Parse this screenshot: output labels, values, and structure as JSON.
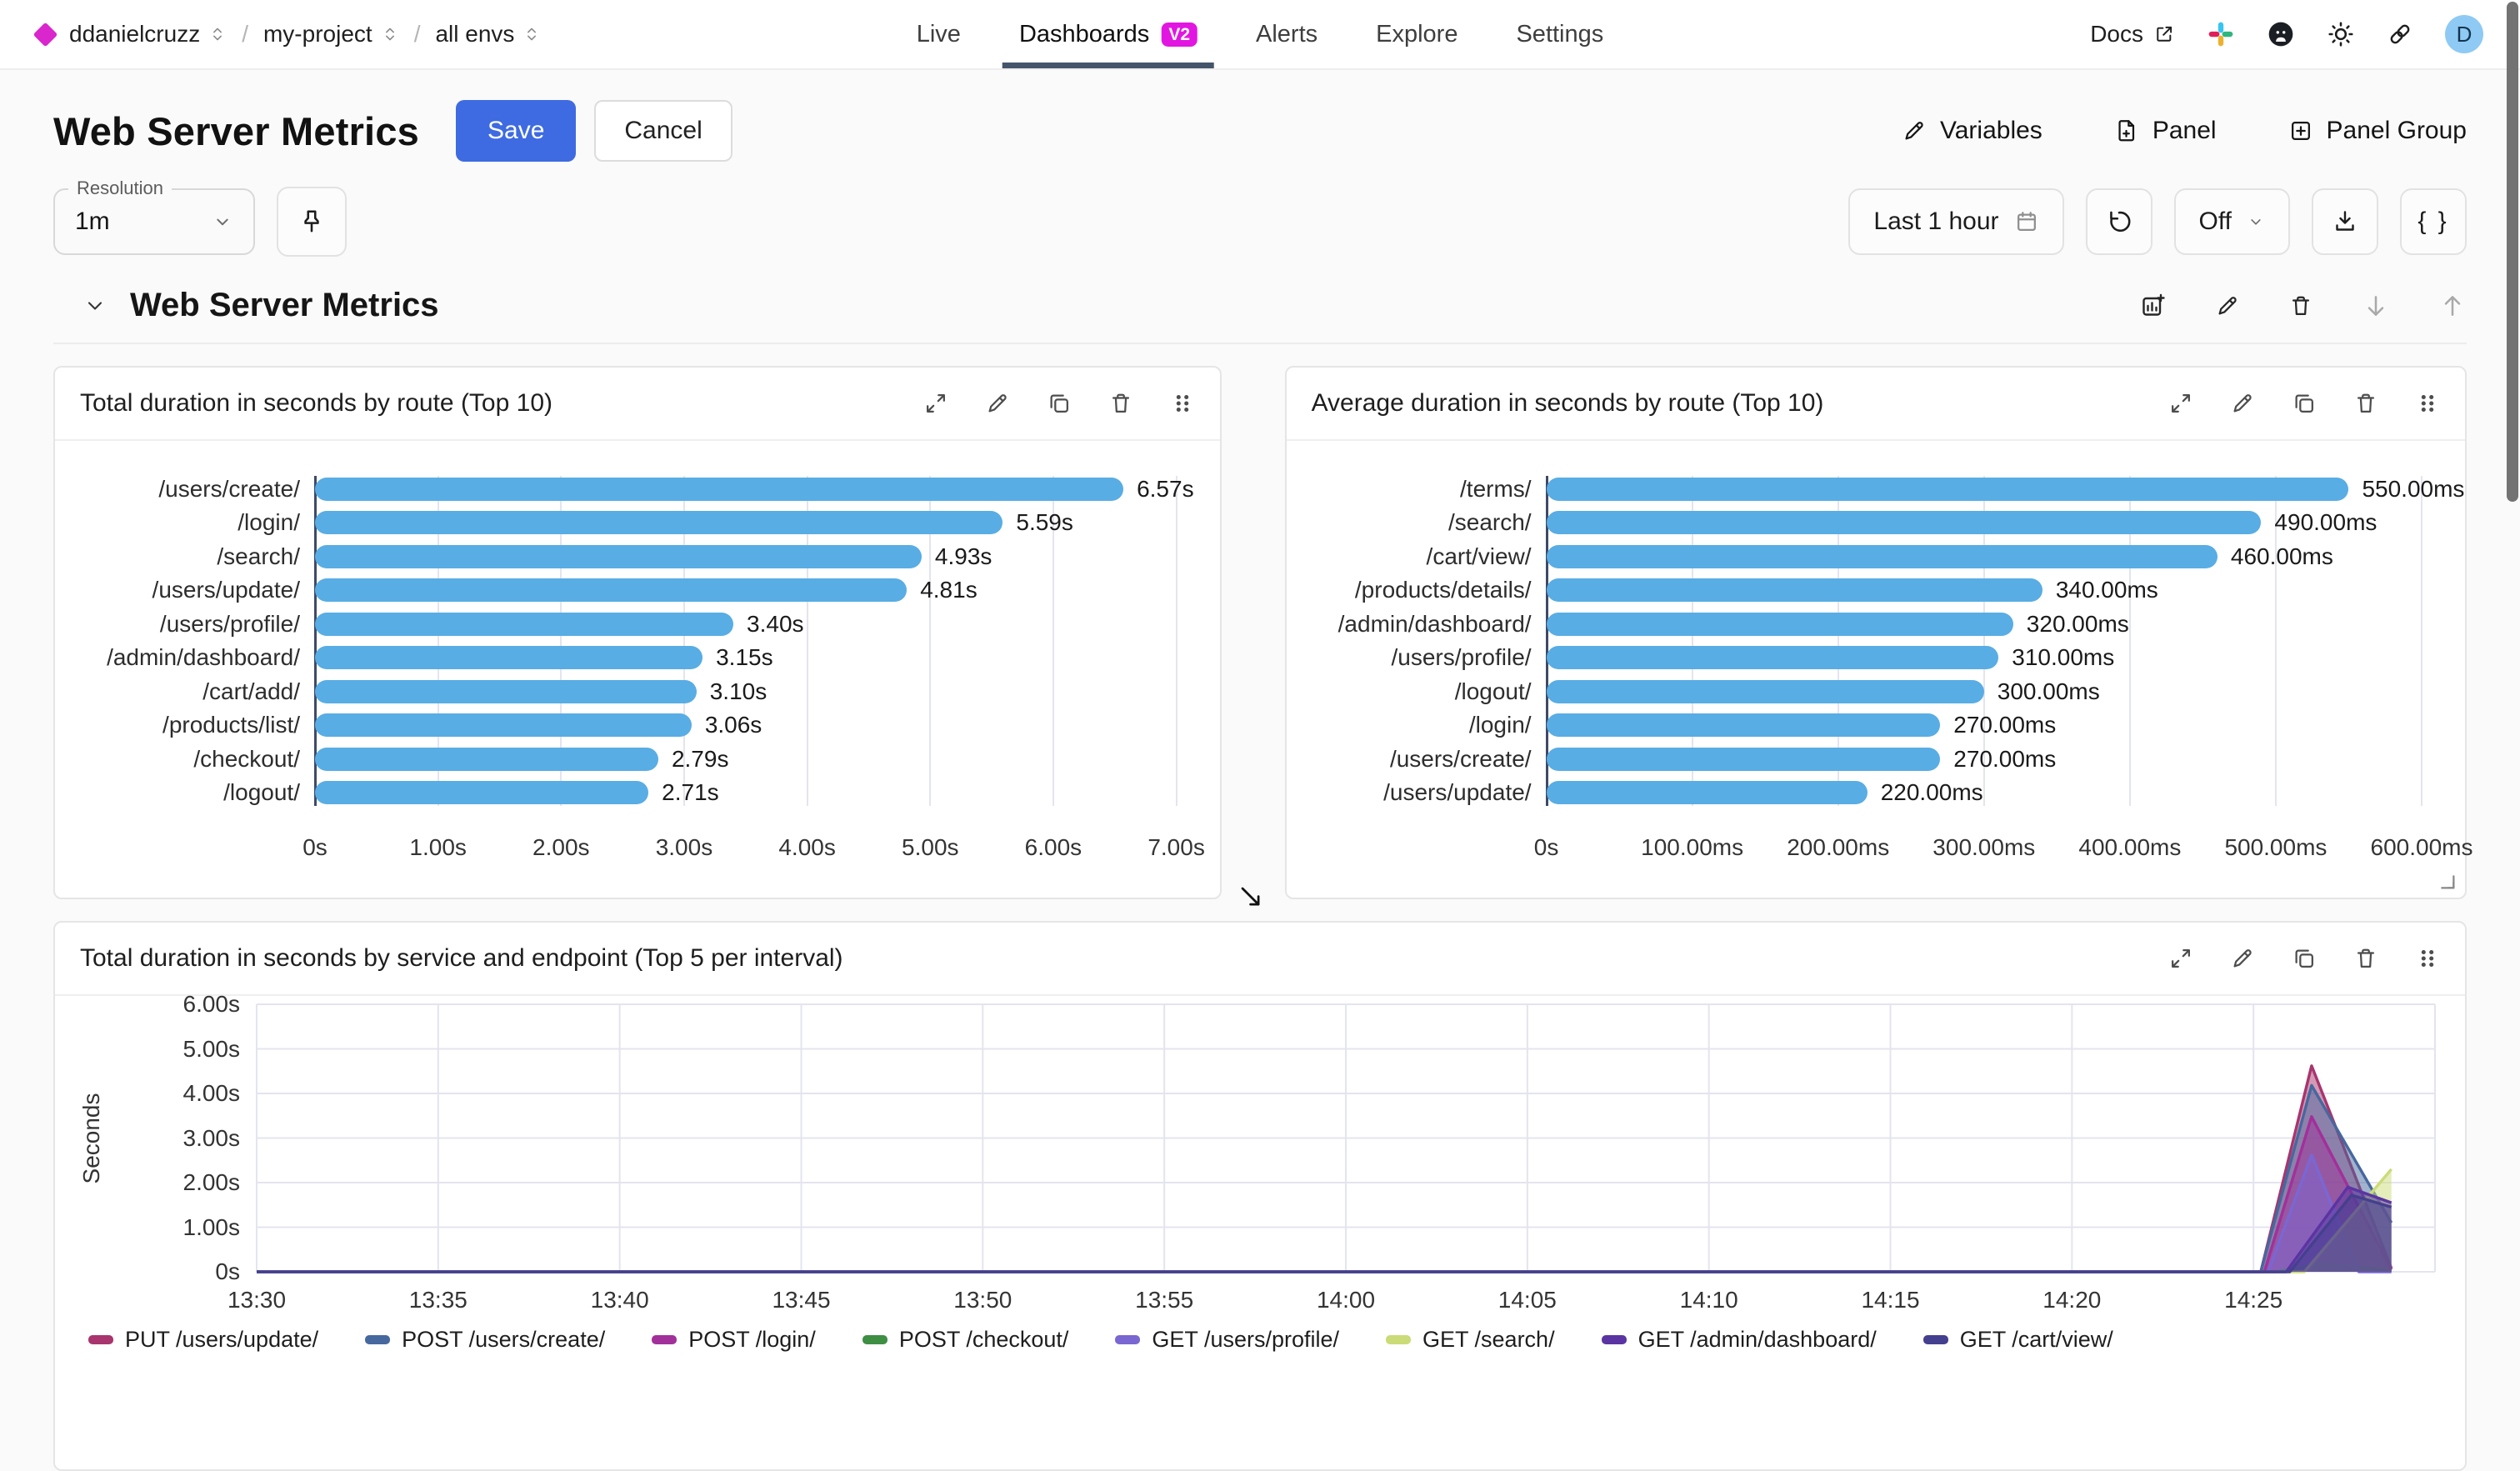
{
  "nav": {
    "breadcrumb": [
      {
        "label": "ddanielcruzz"
      },
      {
        "label": "my-project"
      },
      {
        "label": "all envs"
      }
    ],
    "tabs": [
      {
        "label": "Live"
      },
      {
        "label": "Dashboards",
        "badge": "V2",
        "active": true
      },
      {
        "label": "Alerts"
      },
      {
        "label": "Explore"
      },
      {
        "label": "Settings"
      }
    ],
    "docs_label": "Docs",
    "avatar": "D"
  },
  "header": {
    "title": "Web Server Metrics",
    "save": "Save",
    "cancel": "Cancel",
    "variables": "Variables",
    "panel": "Panel",
    "panel_group": "Panel Group"
  },
  "toolbar": {
    "resolution_label": "Resolution",
    "resolution_value": "1m",
    "time_range": "Last 1 hour",
    "refresh_mode": "Off",
    "code_button": "{ }"
  },
  "section_title": "Web Server Metrics",
  "colors": {
    "accent_blue": "#3E6BE1",
    "badge_magenta": "#E117E1",
    "brand_diamond": "#D926CD",
    "tab_underline": "#44556B",
    "bar_blue": "#58ADE4",
    "avatar_bg": "#8ECAF4"
  },
  "chart_data": [
    {
      "type": "bar",
      "orientation": "horizontal",
      "title": "Total duration in seconds by route (Top 10)",
      "categories": [
        "/users/create/",
        "/login/",
        "/search/",
        "/users/update/",
        "/users/profile/",
        "/admin/dashboard/",
        "/cart/add/",
        "/products/list/",
        "/checkout/",
        "/logout/"
      ],
      "values": [
        6.57,
        5.59,
        4.93,
        4.81,
        3.4,
        3.15,
        3.1,
        3.06,
        2.79,
        2.71
      ],
      "value_labels": [
        "6.57s",
        "5.59s",
        "4.93s",
        "4.81s",
        "3.40s",
        "3.15s",
        "3.10s",
        "3.06s",
        "2.79s",
        "2.71s"
      ],
      "x_ticks": [
        "0s",
        "1.00s",
        "2.00s",
        "3.00s",
        "4.00s",
        "5.00s",
        "6.00s",
        "7.00s"
      ],
      "x_max": 7,
      "bar_color": "#58ADE4",
      "grid": true
    },
    {
      "type": "bar",
      "orientation": "horizontal",
      "title": "Average duration in seconds by route (Top 10)",
      "categories": [
        "/terms/",
        "/search/",
        "/cart/view/",
        "/products/details/",
        "/admin/dashboard/",
        "/users/profile/",
        "/logout/",
        "/login/",
        "/users/create/",
        "/users/update/"
      ],
      "values": [
        550,
        490,
        460,
        340,
        320,
        310,
        300,
        270,
        270,
        220
      ],
      "value_labels": [
        "550.00ms",
        "490.00ms",
        "460.00ms",
        "340.00ms",
        "320.00ms",
        "310.00ms",
        "300.00ms",
        "270.00ms",
        "270.00ms",
        "220.00ms"
      ],
      "x_ticks": [
        "0s",
        "100.00ms",
        "200.00ms",
        "300.00ms",
        "400.00ms",
        "500.00ms",
        "600.00ms"
      ],
      "x_max": 600,
      "bar_color": "#58ADE4",
      "grid": true
    },
    {
      "type": "area",
      "title": "Total duration in seconds by service and endpoint (Top 5 per interval)",
      "ylabel": "Seconds",
      "y_ticks": [
        "0s",
        "1.00s",
        "2.00s",
        "3.00s",
        "4.00s",
        "5.00s",
        "6.00s"
      ],
      "y_max": 6,
      "x_ticks": [
        "13:30",
        "13:35",
        "13:40",
        "13:45",
        "13:50",
        "13:55",
        "14:00",
        "14:05",
        "14:10",
        "14:15",
        "14:20",
        "14:25"
      ],
      "x_tick_minutes": [
        0,
        5,
        10,
        15,
        20,
        25,
        30,
        35,
        40,
        45,
        50,
        55
      ],
      "x_max_minutes": 60,
      "grid": true,
      "legend_position": "bottom",
      "series": [
        {
          "name": "PUT /users/update/",
          "color": "#A8356E",
          "points": [
            [
              0,
              0
            ],
            [
              55.2,
              0
            ],
            [
              56.6,
              4.62
            ],
            [
              58.8,
              0.08
            ]
          ]
        },
        {
          "name": "POST /users/create/",
          "color": "#46689E",
          "points": [
            [
              0,
              0
            ],
            [
              55.2,
              0
            ],
            [
              56.6,
              4.18
            ],
            [
              58.8,
              1.1
            ]
          ]
        },
        {
          "name": "POST /login/",
          "color": "#A2309A",
          "points": [
            [
              0,
              0
            ],
            [
              55.3,
              0
            ],
            [
              56.6,
              3.48
            ],
            [
              58.8,
              0.05
            ]
          ]
        },
        {
          "name": "POST /checkout/",
          "color": "#3E8E44",
          "points": [
            [
              0,
              0
            ],
            [
              55.6,
              0
            ],
            [
              56.8,
              0.18
            ],
            [
              58.8,
              0.03
            ]
          ]
        },
        {
          "name": "GET /users/profile/",
          "color": "#7A67D2",
          "points": [
            [
              0,
              0
            ],
            [
              55.4,
              0
            ],
            [
              56.6,
              2.62
            ],
            [
              57.9,
              0
            ],
            [
              58.8,
              0
            ]
          ]
        },
        {
          "name": "GET /search/",
          "color": "#CBDB77",
          "points": [
            [
              0,
              0
            ],
            [
              56.4,
              0
            ],
            [
              58.8,
              2.3
            ]
          ]
        },
        {
          "name": "GET /admin/dashboard/",
          "color": "#5A35A2",
          "points": [
            [
              0,
              0
            ],
            [
              55.9,
              0
            ],
            [
              57.6,
              1.9
            ],
            [
              58.8,
              1.55
            ]
          ]
        },
        {
          "name": "GET /cart/view/",
          "color": "#44408E",
          "points": [
            [
              0,
              0
            ],
            [
              56.0,
              0
            ],
            [
              57.7,
              1.72
            ],
            [
              58.8,
              1.45
            ]
          ]
        }
      ]
    }
  ]
}
